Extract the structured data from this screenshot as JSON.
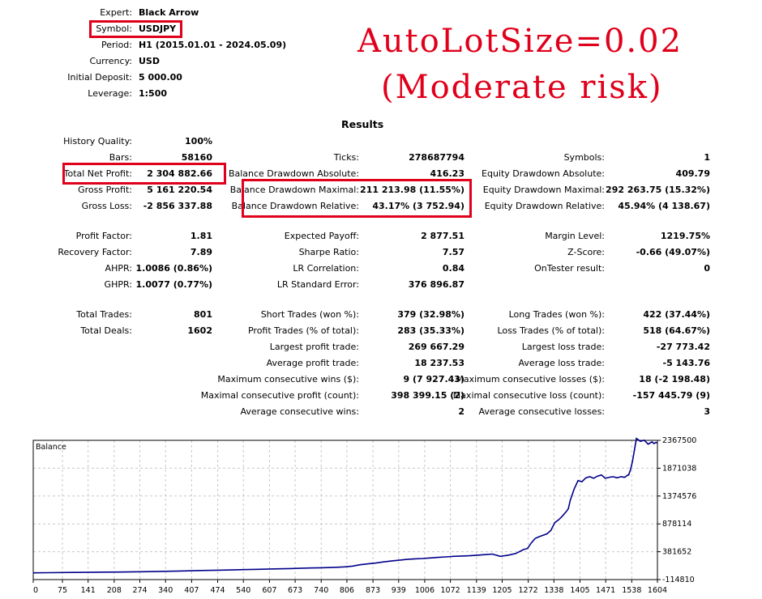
{
  "header": {
    "expert_label": "Expert:",
    "expert_value": "Black Arrow",
    "symbol_label": "Symbol:",
    "symbol_value": "USDJPY",
    "period_label": "Period:",
    "period_value": "H1 (2015.01.01 - 2024.05.09)",
    "currency_label": "Currency:",
    "currency_value": "USD",
    "deposit_label": "Initial Deposit:",
    "deposit_value": "5 000.00",
    "leverage_label": "Leverage:",
    "leverage_value": "1:500"
  },
  "annotation": {
    "line1": "AutoLotSize=0.02",
    "line2": "(Moderate risk)",
    "color": "#e0001b"
  },
  "results": {
    "title": "Results",
    "history_quality_label": "History Quality:",
    "history_quality_value": "100%",
    "bars_label": "Bars:",
    "bars_value": "58160",
    "ticks_label": "Ticks:",
    "ticks_value": "278687794",
    "symbols_label": "Symbols:",
    "symbols_value": "1",
    "net_profit_label": "Total Net Profit:",
    "net_profit_value": "2 304 882.66",
    "bal_dd_abs_label": "Balance Drawdown Absolute:",
    "bal_dd_abs_value": "416.23",
    "eq_dd_abs_label": "Equity Drawdown Absolute:",
    "eq_dd_abs_value": "409.79",
    "gross_profit_label": "Gross Profit:",
    "gross_profit_value": "5 161 220.54",
    "bal_dd_max_label": "Balance Drawdown Maximal:",
    "bal_dd_max_value": "211 213.98 (11.55%)",
    "eq_dd_max_label": "Equity Drawdown Maximal:",
    "eq_dd_max_value": "292 263.75 (15.32%)",
    "gross_loss_label": "Gross Loss:",
    "gross_loss_value": "-2 856 337.88",
    "bal_dd_rel_label": "Balance Drawdown Relative:",
    "bal_dd_rel_value": "43.17% (3 752.94)",
    "eq_dd_rel_label": "Equity Drawdown Relative:",
    "eq_dd_rel_value": "45.94% (4 138.67)",
    "profit_factor_label": "Profit Factor:",
    "profit_factor_value": "1.81",
    "expected_payoff_label": "Expected Payoff:",
    "expected_payoff_value": "2 877.51",
    "margin_level_label": "Margin Level:",
    "margin_level_value": "1219.75%",
    "recovery_factor_label": "Recovery Factor:",
    "recovery_factor_value": "7.89",
    "sharpe_label": "Sharpe Ratio:",
    "sharpe_value": "7.57",
    "zscore_label": "Z-Score:",
    "zscore_value": "-0.66 (49.07%)",
    "ahpr_label": "AHPR:",
    "ahpr_value": "1.0086 (0.86%)",
    "lr_corr_label": "LR Correlation:",
    "lr_corr_value": "0.84",
    "ontester_label": "OnTester result:",
    "ontester_value": "0",
    "ghpr_label": "GHPR:",
    "ghpr_value": "1.0077 (0.77%)",
    "lr_err_label": "LR Standard Error:",
    "lr_err_value": "376 896.87",
    "total_trades_label": "Total Trades:",
    "total_trades_value": "801",
    "short_trades_label": "Short Trades (won %):",
    "short_trades_value": "379 (32.98%)",
    "long_trades_label": "Long Trades (won %):",
    "long_trades_value": "422 (37.44%)",
    "total_deals_label": "Total Deals:",
    "total_deals_value": "1602",
    "profit_trades_label": "Profit Trades (% of total):",
    "profit_trades_value": "283 (35.33%)",
    "loss_trades_label": "Loss Trades (% of total):",
    "loss_trades_value": "518 (64.67%)",
    "largest_profit_label": "Largest profit trade:",
    "largest_profit_value": "269 667.29",
    "largest_loss_label": "Largest loss trade:",
    "largest_loss_value": "-27 773.42",
    "avg_profit_label": "Average profit trade:",
    "avg_profit_value": "18 237.53",
    "avg_loss_label": "Average loss trade:",
    "avg_loss_value": "-5 143.76",
    "max_cons_wins_label": "Maximum consecutive wins ($):",
    "max_cons_wins_value": "9 (7 927.43)",
    "max_cons_losses_label": "Maximum consecutive losses ($):",
    "max_cons_losses_value": "18 (-2 198.48)",
    "maximal_cons_profit_label": "Maximal consecutive profit (count):",
    "maximal_cons_profit_value": "398 399.15 (2)",
    "maximal_cons_loss_label": "Maximal consecutive loss (count):",
    "maximal_cons_loss_value": "-157 445.79 (9)",
    "avg_cons_wins_label": "Average consecutive wins:",
    "avg_cons_wins_value": "2",
    "avg_cons_losses_label": "Average consecutive losses:",
    "avg_cons_losses_value": "3"
  },
  "chart_data": {
    "type": "line",
    "title": "Balance",
    "xlabel": "",
    "ylabel": "",
    "x_ticks": [
      "0",
      "75",
      "141",
      "208",
      "274",
      "340",
      "407",
      "474",
      "540",
      "607",
      "673",
      "740",
      "806",
      "873",
      "939",
      "1006",
      "1072",
      "1139",
      "1205",
      "1272",
      "1338",
      "1405",
      "1471",
      "1538",
      "1604"
    ],
    "y_ticks": [
      "2367500",
      "1871038",
      "1374576",
      "878114",
      "381652",
      "-114810"
    ],
    "xlim": [
      0,
      1604
    ],
    "ylim": [
      -114810,
      2367500
    ],
    "grid": true,
    "line_color": "#00008b",
    "series": [
      {
        "x": [
          0,
          40,
          100,
          160,
          220,
          280,
          340,
          380,
          420,
          460,
          500,
          540,
          580,
          620,
          660,
          700,
          740,
          780,
          800,
          820,
          840,
          860,
          880,
          900,
          920,
          940,
          960,
          980,
          1000,
          1020,
          1040,
          1060,
          1080,
          1100,
          1120,
          1140,
          1160,
          1180,
          1200,
          1220,
          1240,
          1260,
          1270,
          1280,
          1290,
          1300,
          1320,
          1330,
          1340,
          1350,
          1360,
          1370,
          1375,
          1380,
          1390,
          1400,
          1410,
          1420,
          1430,
          1440,
          1450,
          1460,
          1470,
          1480,
          1490,
          1500,
          1510,
          1520,
          1528,
          1530,
          1535,
          1540,
          1545,
          1550,
          1560,
          1570,
          1580,
          1590,
          1595,
          1600,
          1604
        ],
        "values": [
          5000,
          8000,
          12000,
          16000,
          20000,
          25000,
          32000,
          38000,
          45000,
          50000,
          56000,
          62000,
          68000,
          75000,
          82000,
          90000,
          96000,
          104000,
          112000,
          125000,
          150000,
          165000,
          180000,
          200000,
          215000,
          230000,
          245000,
          255000,
          260000,
          270000,
          280000,
          290000,
          300000,
          305000,
          310000,
          320000,
          330000,
          340000,
          300000,
          320000,
          350000,
          420000,
          440000,
          540000,
          620000,
          650000,
          700000,
          760000,
          900000,
          950000,
          1020000,
          1100000,
          1150000,
          1300000,
          1500000,
          1650000,
          1630000,
          1700000,
          1720000,
          1690000,
          1730000,
          1750000,
          1690000,
          1710000,
          1720000,
          1700000,
          1720000,
          1710000,
          1750000,
          1750000,
          1850000,
          2000000,
          2200000,
          2400000,
          2350000,
          2370000,
          2300000,
          2340000,
          2310000,
          2330000,
          2320000
        ]
      }
    ]
  }
}
